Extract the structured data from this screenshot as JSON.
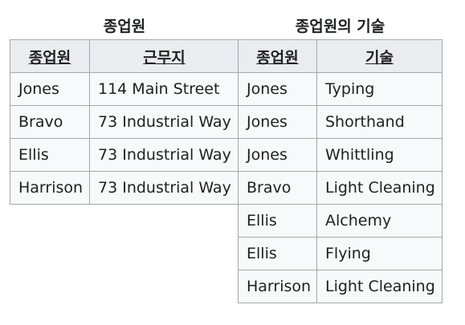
{
  "left_table": {
    "caption": "종업원",
    "headers": [
      "종업원",
      "근무지"
    ],
    "rows": [
      [
        "Jones",
        "114 Main Street"
      ],
      [
        "Bravo",
        "73 Industrial Way"
      ],
      [
        "Ellis",
        "73 Industrial Way"
      ],
      [
        "Harrison",
        "73 Industrial Way"
      ]
    ]
  },
  "right_table": {
    "caption": "종업원의 기술",
    "headers": [
      "종업원",
      "기술"
    ],
    "rows": [
      [
        "Jones",
        "Typing"
      ],
      [
        "Jones",
        "Shorthand"
      ],
      [
        "Jones",
        "Whittling"
      ],
      [
        "Bravo",
        "Light Cleaning"
      ],
      [
        "Ellis",
        "Alchemy"
      ],
      [
        "Ellis",
        "Flying"
      ],
      [
        "Harrison",
        "Light Cleaning"
      ]
    ]
  }
}
